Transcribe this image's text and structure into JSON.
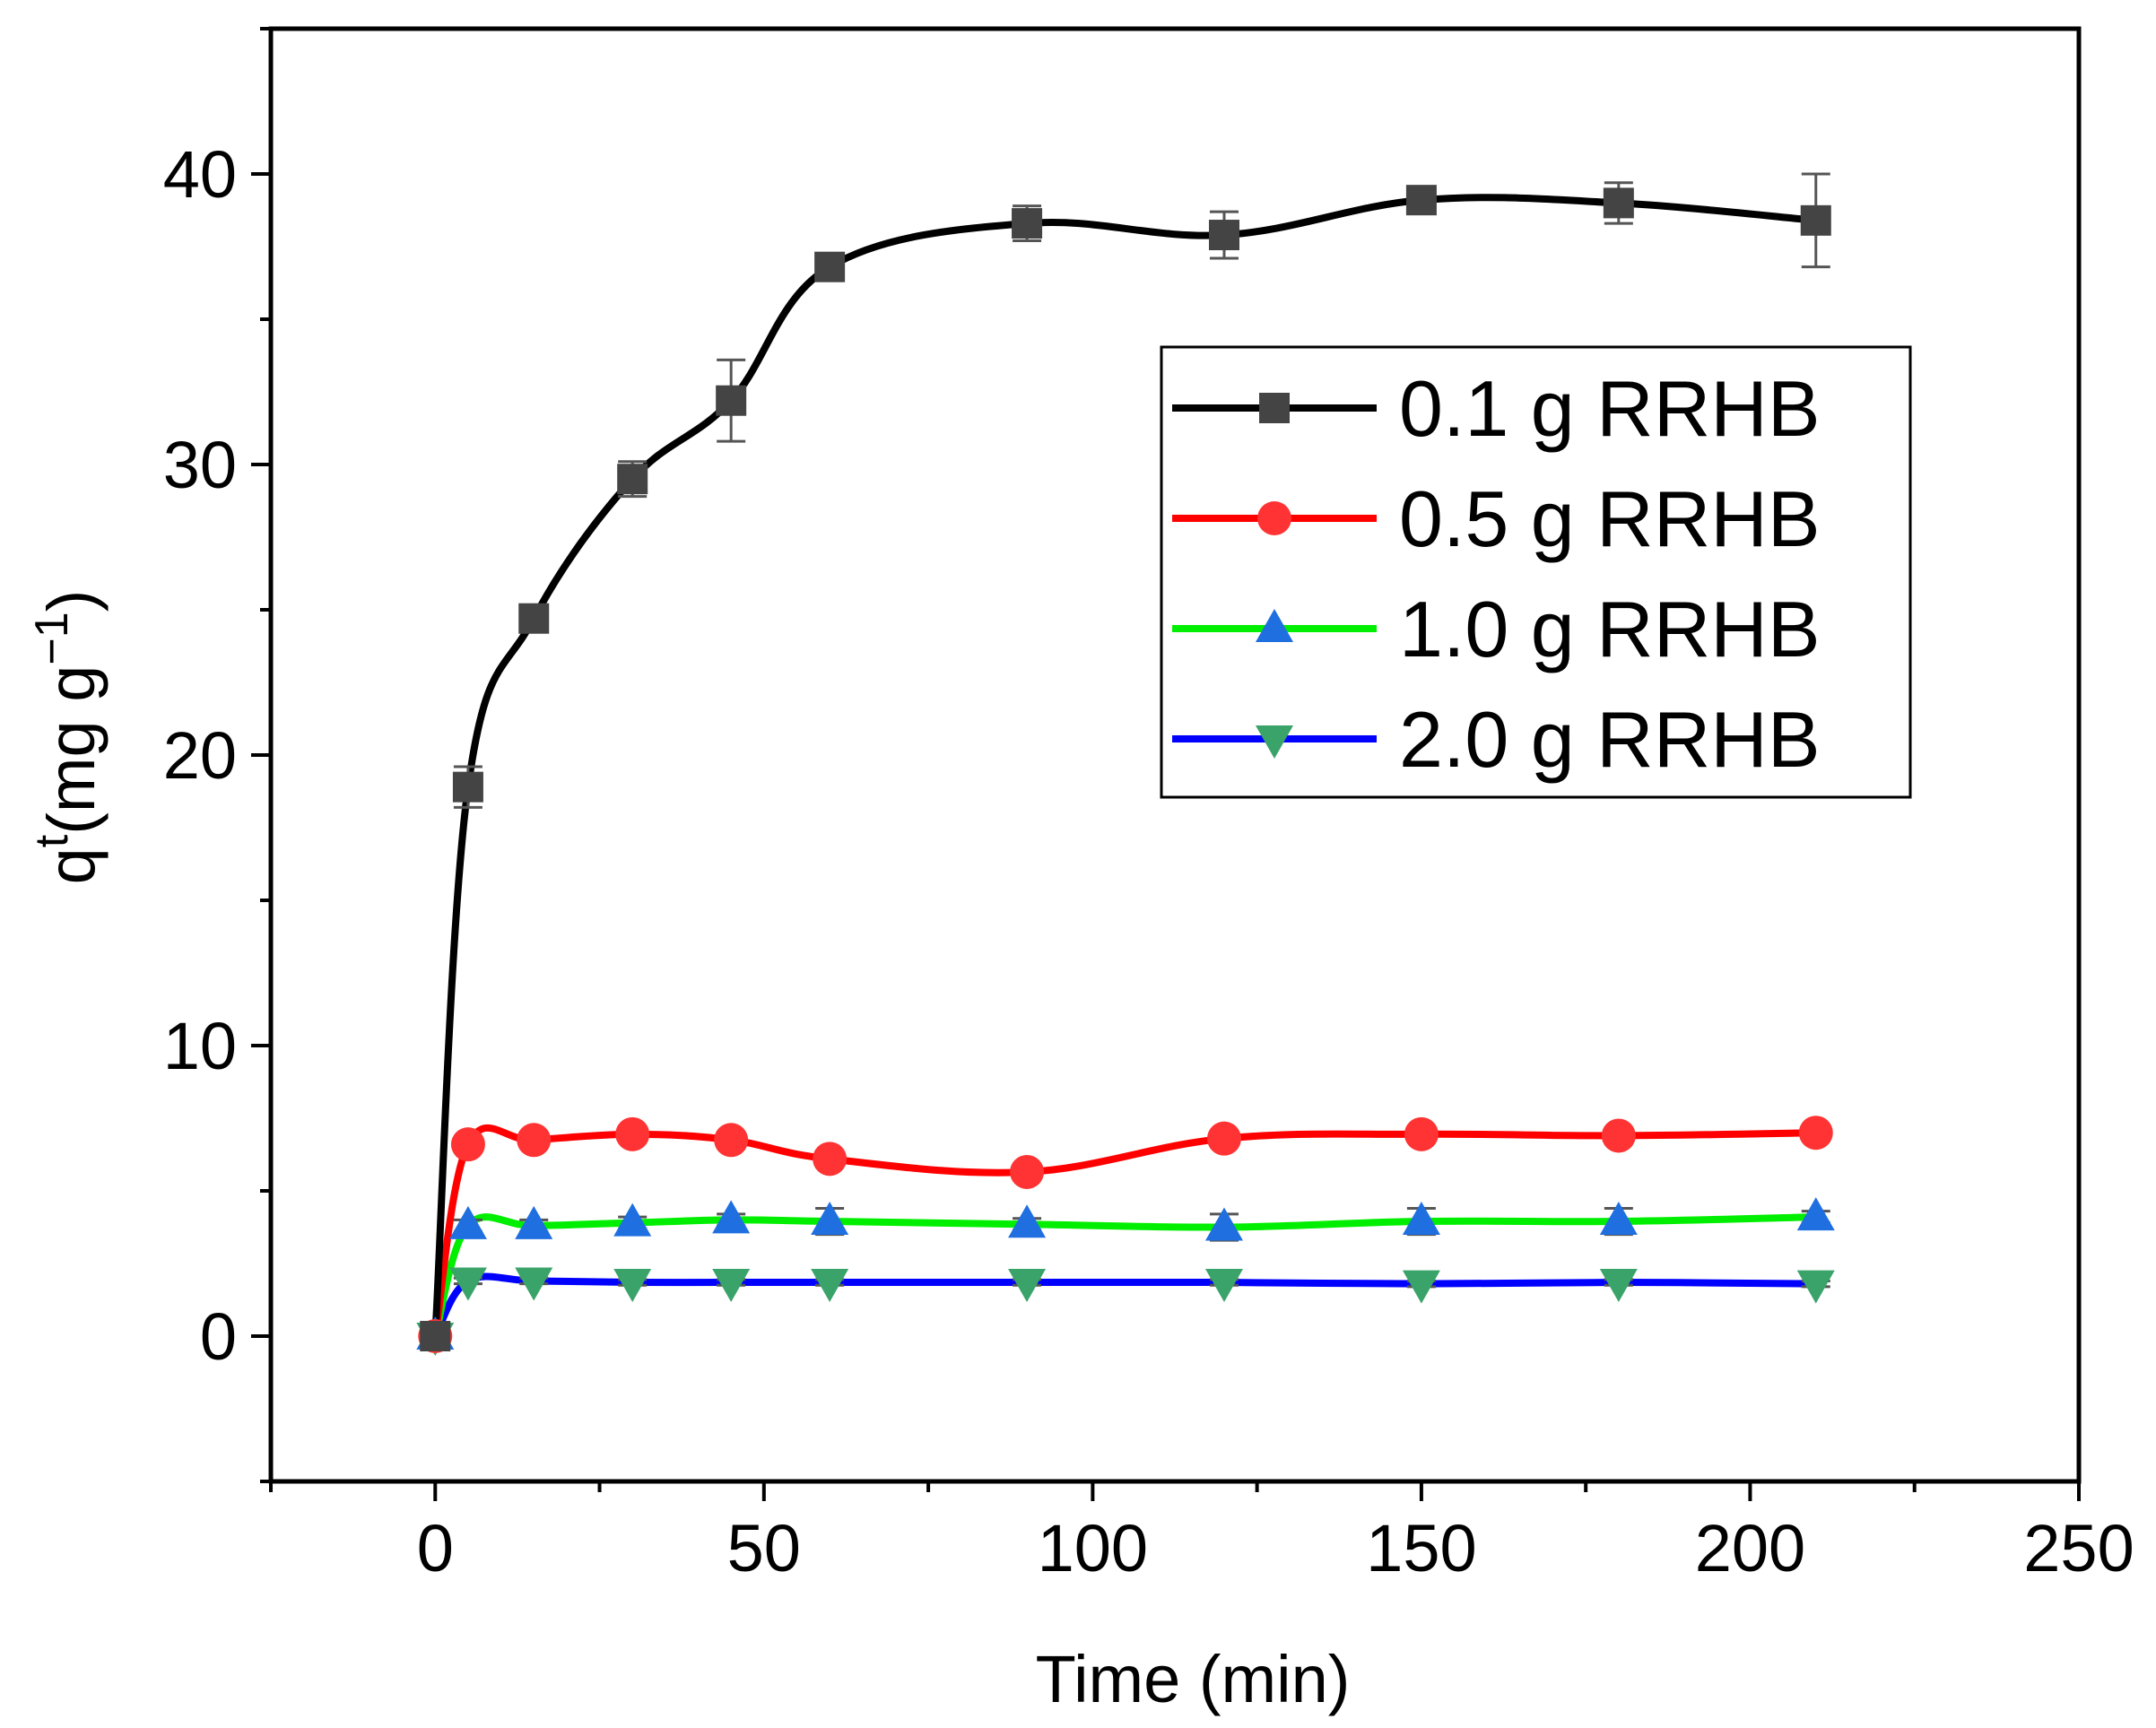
{
  "chart_data": {
    "type": "line",
    "title": "",
    "xlabel": "Time (min)",
    "ylabel": {
      "base": "q",
      "sup": "t",
      "unit_prefix": "(mg g",
      "unit_exp": "−1",
      "unit_suffix": ")"
    },
    "xlim": [
      -25,
      250
    ],
    "ylim": [
      -5,
      45
    ],
    "xticks": [
      0,
      50,
      100,
      150,
      200,
      250
    ],
    "yticks": [
      0,
      10,
      20,
      30,
      40
    ],
    "x": [
      0,
      5,
      15,
      30,
      45,
      60,
      90,
      120,
      150,
      180,
      210
    ],
    "series": [
      {
        "name": "0.1 g RRHB",
        "color": "#000000",
        "marker_color": "#444444",
        "marker": "square",
        "values": [
          0,
          18.9,
          24.7,
          29.5,
          32.2,
          36.8,
          38.3,
          37.9,
          39.1,
          39.0,
          38.4
        ],
        "errors": [
          0,
          0.7,
          0.4,
          0.6,
          1.4,
          0.3,
          0.6,
          0.8,
          0.4,
          0.7,
          1.6
        ]
      },
      {
        "name": "0.5 g RRHB",
        "color": "#ff0000",
        "marker_color": "#ff3333",
        "marker": "circle",
        "values": [
          0,
          6.6,
          6.75,
          6.95,
          6.75,
          6.1,
          5.65,
          6.8,
          6.95,
          6.9,
          7.0
        ],
        "errors": [
          0,
          0.2,
          0.2,
          0.2,
          0.2,
          0.25,
          0.25,
          0.2,
          0.2,
          0.2,
          0.2
        ]
      },
      {
        "name": "1.0 g RRHB",
        "color": "#00ee00",
        "marker_color": "#1f6fe0",
        "marker": "triangle-up",
        "values": [
          0,
          3.8,
          3.8,
          3.9,
          4.0,
          3.95,
          3.85,
          3.75,
          3.95,
          3.95,
          4.1
        ],
        "errors": [
          0,
          0.2,
          0.2,
          0.2,
          0.2,
          0.45,
          0.2,
          0.45,
          0.45,
          0.45,
          0.2
        ]
      },
      {
        "name": "2.0 g RRHB",
        "color": "#0000ff",
        "marker_color": "#3aa36a",
        "marker": "triangle-down",
        "values": [
          0,
          1.9,
          1.9,
          1.85,
          1.85,
          1.85,
          1.85,
          1.85,
          1.8,
          1.85,
          1.8
        ],
        "errors": [
          0,
          0.1,
          0.1,
          0.1,
          0.1,
          0.1,
          0.1,
          0.1,
          0.1,
          0.1,
          0.1
        ]
      }
    ],
    "legend": {
      "position": "upper-right",
      "framed": true
    },
    "grid": false
  }
}
